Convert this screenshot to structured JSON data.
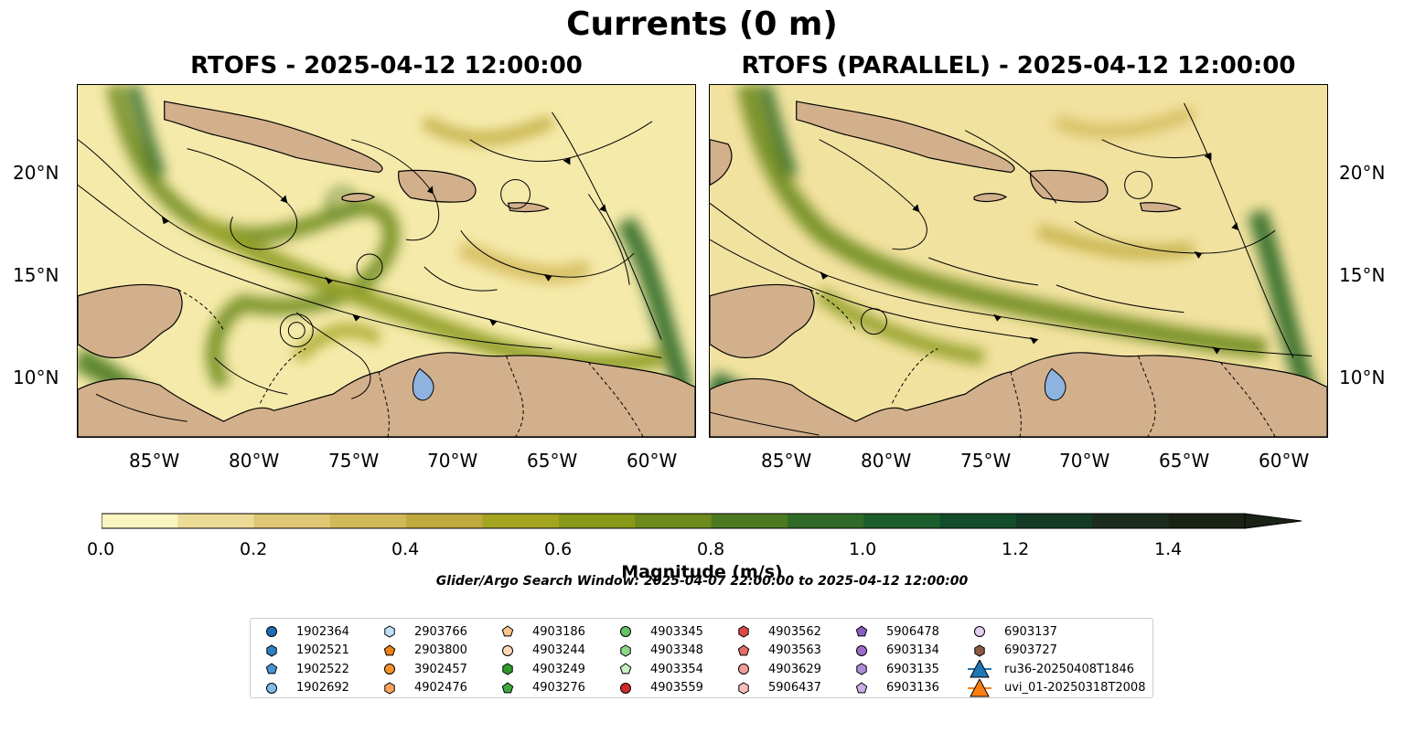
{
  "figure": {
    "suptitle": "Currents (0 m)",
    "panels": [
      {
        "title": "RTOFS - 2025-04-12 12:00:00"
      },
      {
        "title": "RTOFS (PARALLEL) - 2025-04-12 12:00:00"
      }
    ],
    "x_ticks": [
      "85°W",
      "80°W",
      "75°W",
      "70°W",
      "65°W",
      "60°W"
    ],
    "y_ticks": [
      "20°N",
      "15°N",
      "10°N"
    ],
    "colorbar": {
      "label": "Magnitude (m/s)",
      "ticks": [
        "0.0",
        "0.2",
        "0.4",
        "0.6",
        "0.8",
        "1.0",
        "1.2",
        "1.4"
      ],
      "range": [
        0,
        1.5
      ],
      "colors": [
        "#fbf5c1",
        "#ecdb96",
        "#dfc674",
        "#d1b859",
        "#bfaa3d",
        "#a4a421",
        "#88991a",
        "#6d8a1c",
        "#4c7a22",
        "#2f6b26",
        "#1c5e2c",
        "#134c2b",
        "#143b26",
        "#1c2c1e",
        "#1a2216"
      ],
      "extend": "max"
    },
    "search_window": "Glider/Argo Search Window: 2025-04-07 22:00:00 to 2025-04-12 12:00:00",
    "colors": {
      "land": "#d2b08b",
      "ocean_low": "#f6eaab",
      "ocean_high": "#2f6b26",
      "river": "#8fb3df"
    }
  },
  "legend": [
    {
      "label": "1902364",
      "marker": "circle",
      "color": "#1f6eb4"
    },
    {
      "label": "1902521",
      "marker": "hexagon",
      "color": "#2d7fc3"
    },
    {
      "label": "1902522",
      "marker": "pentagon",
      "color": "#4a93d6"
    },
    {
      "label": "1902692",
      "marker": "circle",
      "color": "#7ebdea"
    },
    {
      "label": "2903766",
      "marker": "hexagon",
      "color": "#bfe2f8"
    },
    {
      "label": "2903800",
      "marker": "pentagon",
      "color": "#f07f13"
    },
    {
      "label": "3902457",
      "marker": "circle",
      "color": "#f7922b"
    },
    {
      "label": "4902476",
      "marker": "hexagon",
      "color": "#fba35c"
    },
    {
      "label": "4903186",
      "marker": "pentagon",
      "color": "#fdc38e"
    },
    {
      "label": "4903244",
      "marker": "circle",
      "color": "#fdd9b8"
    },
    {
      "label": "4903249",
      "marker": "hexagon",
      "color": "#2c9b2c"
    },
    {
      "label": "4903276",
      "marker": "pentagon",
      "color": "#3fa93f"
    },
    {
      "label": "4903345",
      "marker": "circle",
      "color": "#65c262"
    },
    {
      "label": "4903348",
      "marker": "hexagon",
      "color": "#8ed68a"
    },
    {
      "label": "4903354",
      "marker": "pentagon",
      "color": "#c6f0c0"
    },
    {
      "label": "4903559",
      "marker": "circle",
      "color": "#d02a26"
    },
    {
      "label": "4903562",
      "marker": "hexagon",
      "color": "#dc4848"
    },
    {
      "label": "4903563",
      "marker": "pentagon",
      "color": "#e86b6b"
    },
    {
      "label": "4903629",
      "marker": "circle",
      "color": "#f39b9b"
    },
    {
      "label": "5906437",
      "marker": "hexagon",
      "color": "#fbbcbc"
    },
    {
      "label": "5906478",
      "marker": "pentagon",
      "color": "#8c5cbf"
    },
    {
      "label": "6903134",
      "marker": "circle",
      "color": "#9b6ccb"
    },
    {
      "label": "6903135",
      "marker": "hexagon",
      "color": "#b08bd8"
    },
    {
      "label": "6903136",
      "marker": "pentagon",
      "color": "#c8b0e6"
    },
    {
      "label": "6903137",
      "marker": "circle",
      "color": "#e2d0f3"
    },
    {
      "label": "6903727",
      "marker": "hexagon",
      "color": "#8b5a45"
    },
    {
      "label": "ru36-20250408T1846",
      "marker": "triangle",
      "color": "#1f77b4"
    },
    {
      "label": "uvi_01-20250318T2008",
      "marker": "triangle",
      "color": "#ff7f0e"
    }
  ]
}
